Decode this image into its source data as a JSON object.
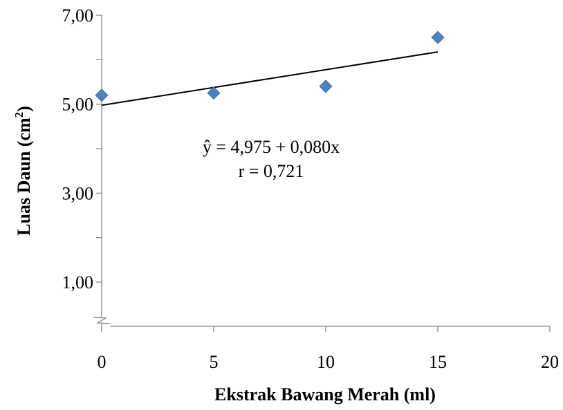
{
  "chart_data": {
    "type": "scatter",
    "x": [
      0,
      5,
      10,
      15
    ],
    "y": [
      5.2,
      5.25,
      5.4,
      6.5
    ],
    "xticks": [
      "0",
      "5",
      "10",
      "15",
      "20"
    ],
    "yticks": [
      "1,00",
      "3,00",
      "5,00",
      "7,00"
    ],
    "xlim": [
      0,
      20
    ],
    "ylim_shown": [
      1.0,
      7.0
    ],
    "xlabel": "Ekstrak Bawang Merah (ml)",
    "ylabel_main": "Luas Daun (cm",
    "ylabel_sup": "2",
    "ylabel_close": ")",
    "axis_break": true,
    "trendline": {
      "intercept": 4.975,
      "slope": 0.08,
      "x_range": [
        0,
        15
      ]
    },
    "annotations": {
      "equation": "ŷ = 4,975 + 0,080x",
      "r": "r = 0,721"
    },
    "colors": {
      "marker": "#4F81BD",
      "axis": "#808080",
      "trendline": "#000000"
    }
  }
}
